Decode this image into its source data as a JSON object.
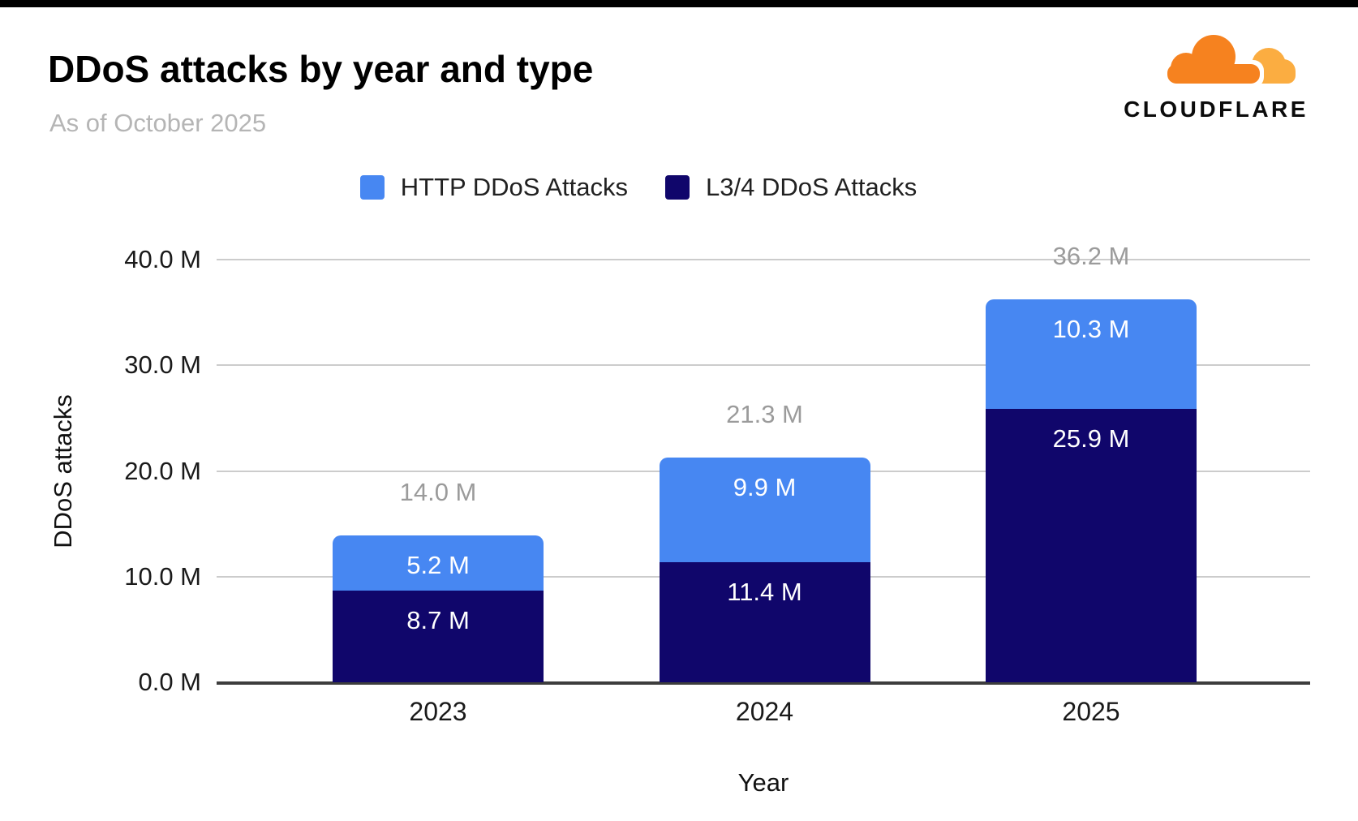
{
  "page": {
    "background": "#ffffff",
    "top_bar_color": "#000000"
  },
  "header": {
    "title": "DDoS attacks by year and type",
    "subtitle": "As of October 2025"
  },
  "branding": {
    "logo_text": "CLOUDFLARE",
    "cloud_color": "#f6821f",
    "cloud_color_light": "#fbad41"
  },
  "chart_data": {
    "type": "bar",
    "stacked": true,
    "title": "DDoS attacks by year and type",
    "subtitle": "As of October 2025",
    "xlabel": "Year",
    "ylabel": "DDoS attacks",
    "categories": [
      "2023",
      "2024",
      "2025"
    ],
    "series": [
      {
        "name": "HTTP DDoS Attacks",
        "color": "#4787f2",
        "values": [
          5.2,
          9.9,
          10.3
        ],
        "value_labels": [
          "5.2 M",
          "9.9 M",
          "10.3 M"
        ]
      },
      {
        "name": "L3/4 DDoS Attacks",
        "color": "#10066b",
        "values": [
          8.7,
          11.4,
          25.9
        ],
        "value_labels": [
          "8.7 M",
          "11.4 M",
          "25.9 M"
        ]
      }
    ],
    "totals": [
      14.0,
      21.3,
      36.2
    ],
    "total_labels": [
      "14.0 M",
      "21.3 M",
      "36.2 M"
    ],
    "y_ticks": [
      {
        "value": 40,
        "label": "40.0 M"
      },
      {
        "value": 30,
        "label": "30.0 M"
      },
      {
        "value": 20,
        "label": "20.0 M"
      },
      {
        "value": 10,
        "label": "10.0 M"
      },
      {
        "value": 0,
        "label": "0.0 M"
      }
    ],
    "ylim": [
      0,
      40
    ],
    "grid": true,
    "legend_position": "top",
    "colors": {
      "grid": "#cccccc",
      "axis": "#3d3d3d",
      "total_label": "#9b9b9b",
      "segment_label": "#ffffff"
    }
  }
}
